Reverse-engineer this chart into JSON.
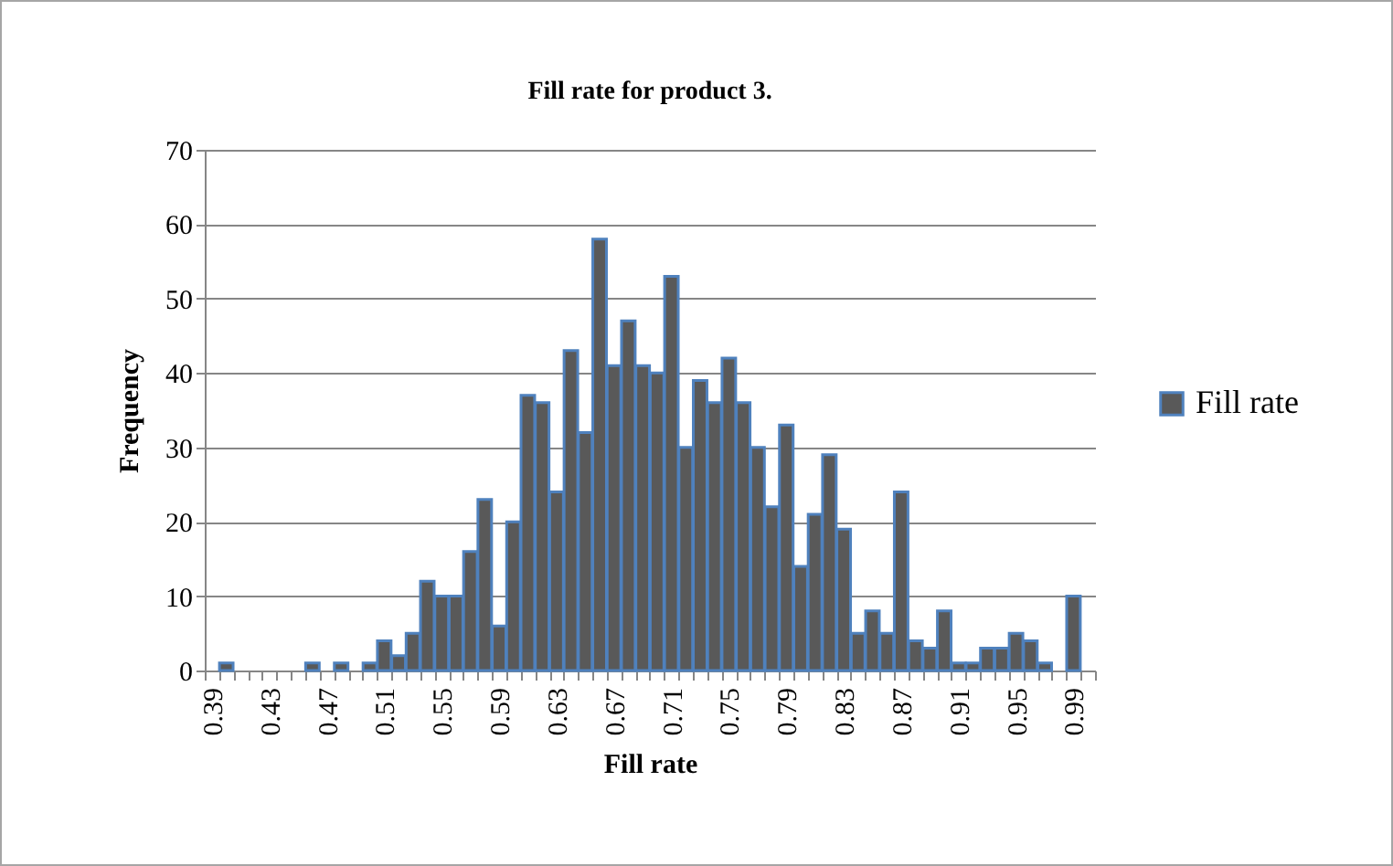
{
  "chart_data": {
    "type": "bar",
    "title": "Fill rate for product 3.",
    "xlabel": "Fill rate",
    "ylabel": "Frequency",
    "categories": [
      "0.39",
      null,
      null,
      null,
      "0.43",
      null,
      null,
      null,
      "0.47",
      null,
      null,
      null,
      "0.51",
      null,
      null,
      null,
      "0.55",
      null,
      null,
      null,
      "0.59",
      null,
      null,
      null,
      "0.63",
      null,
      null,
      null,
      "0.67",
      null,
      null,
      null,
      "0.71",
      null,
      null,
      null,
      "0.75",
      null,
      null,
      null,
      "0.79",
      null,
      null,
      null,
      "0.83",
      null,
      null,
      null,
      "0.87",
      null,
      null,
      null,
      "0.91",
      null,
      null,
      null,
      "0.95",
      null,
      null,
      null,
      "0.99",
      null
    ],
    "series": [
      {
        "name": "Fill rate",
        "color": "#595959",
        "values": [
          0,
          1,
          0,
          0,
          0,
          0,
          0,
          1,
          0,
          1,
          0,
          1,
          4,
          2,
          5,
          12,
          10,
          10,
          16,
          23,
          6,
          20,
          37,
          36,
          24,
          43,
          32,
          58,
          41,
          47,
          41,
          40,
          53,
          30,
          39,
          36,
          42,
          36,
          30,
          22,
          33,
          14,
          21,
          29,
          19,
          5,
          8,
          5,
          24,
          4,
          3,
          8,
          1,
          1,
          3,
          3,
          5,
          4,
          1,
          0,
          10,
          0
        ]
      }
    ],
    "ylim": [
      0,
      70
    ],
    "yticks": [
      0,
      10,
      20,
      30,
      40,
      50,
      60,
      70
    ],
    "grid": "y",
    "legend": "right"
  }
}
